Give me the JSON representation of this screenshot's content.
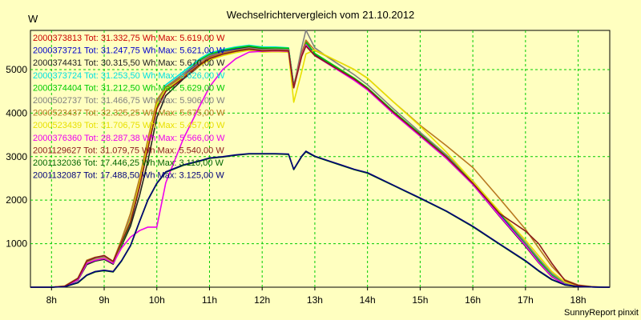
{
  "chart_data": {
    "type": "line",
    "title": "Wechselrichtervergleich vom 21.10.2012",
    "ylabel": "W",
    "xlabel": "",
    "credit": "SunnyReport pinxit",
    "x_unit": "hour",
    "xlim": [
      7.6,
      18.6
    ],
    "ylim": [
      0,
      5900
    ],
    "yticks": [
      1000,
      2000,
      3000,
      4000,
      5000
    ],
    "xticks": [
      {
        "value": 8,
        "label": "8h"
      },
      {
        "value": 9,
        "label": "9h"
      },
      {
        "value": 10,
        "label": "10h"
      },
      {
        "value": 11,
        "label": "11h"
      },
      {
        "value": 12,
        "label": "12h"
      },
      {
        "value": 13,
        "label": "13h"
      },
      {
        "value": 14,
        "label": "14h"
      },
      {
        "value": 15,
        "label": "15h"
      },
      {
        "value": 16,
        "label": "16h"
      },
      {
        "value": 17,
        "label": "17h"
      },
      {
        "value": 18,
        "label": "18h"
      }
    ],
    "grid": true,
    "legend_position": "top-left",
    "x": [
      7.6,
      8.0,
      8.25,
      8.5,
      8.67,
      8.83,
      9.0,
      9.17,
      9.33,
      9.5,
      9.67,
      9.83,
      10.0,
      10.17,
      10.5,
      10.83,
      11.0,
      11.25,
      11.5,
      11.75,
      12.0,
      12.25,
      12.5,
      12.6,
      12.75,
      12.83,
      13.0,
      13.25,
      13.5,
      13.75,
      14.0,
      14.5,
      15.0,
      15.5,
      16.0,
      16.5,
      17.0,
      17.25,
      17.5,
      17.75,
      18.0,
      18.25,
      18.5,
      18.6
    ],
    "series": [
      {
        "name": "2000373813",
        "label": "2000373813 Tot: 31.332,75 Wh Max: 5.619,00 W",
        "color": "#cc0000",
        "values": [
          0,
          0,
          20,
          180,
          560,
          630,
          680,
          560,
          1000,
          1500,
          2300,
          3200,
          4100,
          4500,
          4800,
          5150,
          5290,
          5390,
          5460,
          5520,
          5480,
          5490,
          5480,
          4600,
          5350,
          5619,
          5350,
          5160,
          4970,
          4780,
          4560,
          4010,
          3500,
          3000,
          2400,
          1700,
          1000,
          620,
          280,
          70,
          20,
          5,
          0,
          0
        ]
      },
      {
        "name": "2000373721",
        "label": "2000373721 Tot: 31.247,75 Wh Max: 5.621,00 W",
        "color": "#0000cc",
        "values": [
          0,
          0,
          20,
          170,
          540,
          620,
          660,
          540,
          980,
          1480,
          2300,
          3200,
          4150,
          4550,
          4850,
          5200,
          5320,
          5420,
          5480,
          5540,
          5500,
          5500,
          5490,
          4620,
          5360,
          5621,
          5360,
          5170,
          4980,
          4790,
          4570,
          4020,
          3510,
          3010,
          2410,
          1700,
          990,
          600,
          270,
          60,
          15,
          5,
          0,
          0
        ]
      },
      {
        "name": "2000374431",
        "label": "2000374431 Tot: 30.315,50 Wh Max: 5.670,00 W",
        "color": "#202020",
        "values": [
          0,
          0,
          20,
          160,
          520,
          600,
          640,
          530,
          950,
          1400,
          2100,
          2900,
          3900,
          4400,
          4780,
          5100,
          5260,
          5380,
          5450,
          5520,
          5470,
          5480,
          5470,
          4590,
          5340,
          5670,
          5330,
          5140,
          4950,
          4760,
          4540,
          3990,
          3470,
          2960,
          2360,
          1640,
          940,
          560,
          240,
          60,
          15,
          5,
          0,
          0
        ]
      },
      {
        "name": "2000373724",
        "label": "2000373724 Tot: 31.253,50 Wh Max: 5.626,00 W",
        "color": "#00e0e0",
        "values": [
          0,
          0,
          20,
          170,
          550,
          620,
          670,
          550,
          1000,
          1500,
          2350,
          3250,
          4200,
          4650,
          4950,
          5260,
          5380,
          5460,
          5520,
          5560,
          5520,
          5520,
          5500,
          4640,
          5370,
          5626,
          5370,
          5180,
          4990,
          4800,
          4580,
          4030,
          3520,
          3020,
          2420,
          1720,
          1010,
          630,
          290,
          75,
          20,
          5,
          0,
          0
        ]
      },
      {
        "name": "2000374404",
        "label": "2000374404 Tot: 31.212,50 Wh Max: 5.629,00 W",
        "color": "#00cc00",
        "values": [
          0,
          0,
          20,
          170,
          550,
          620,
          660,
          550,
          990,
          1490,
          2320,
          3220,
          4150,
          4600,
          4900,
          5230,
          5350,
          5440,
          5500,
          5540,
          5500,
          5500,
          5490,
          4630,
          5370,
          5629,
          5370,
          5180,
          4990,
          4800,
          4580,
          4030,
          3520,
          3020,
          2420,
          1720,
          1000,
          620,
          280,
          70,
          20,
          5,
          0,
          0
        ]
      },
      {
        "name": "2000502737",
        "label": "2000502737 Tot: 31.466,75 Wh Max: 5.906,00 W",
        "color": "#808080",
        "values": [
          0,
          0,
          20,
          190,
          580,
          650,
          700,
          580,
          1050,
          1600,
          2400,
          3300,
          4250,
          4600,
          4900,
          5200,
          5320,
          5400,
          5450,
          5500,
          5460,
          5470,
          5460,
          4600,
          5500,
          5906,
          5500,
          5280,
          5080,
          4880,
          4650,
          4090,
          3560,
          3040,
          2440,
          1740,
          1030,
          660,
          320,
          100,
          30,
          10,
          0,
          0
        ]
      },
      {
        "name": "2000523437",
        "label": "2000523437 Tot: 32.325,25 Wh Max: 5.675,00 W",
        "color": "#b87820",
        "values": [
          0,
          0,
          30,
          210,
          620,
          690,
          720,
          600,
          1100,
          1700,
          2500,
          3400,
          4300,
          4600,
          4850,
          5150,
          5280,
          5380,
          5440,
          5480,
          5440,
          5450,
          5440,
          4600,
          5380,
          5675,
          5440,
          5290,
          5150,
          5000,
          4800,
          4250,
          3720,
          3250,
          2750,
          2050,
          1330,
          900,
          480,
          170,
          50,
          15,
          0,
          0
        ]
      },
      {
        "name": "2000523439",
        "label": "2000523439 Tot: 31.706,75 Wh Max: 5.457,00 W",
        "color": "#e8e000",
        "values": [
          0,
          0,
          20,
          180,
          560,
          630,
          670,
          560,
          1020,
          1550,
          2380,
          3280,
          4200,
          4550,
          4820,
          5100,
          5220,
          5320,
          5390,
          5440,
          5400,
          5410,
          5400,
          4250,
          4950,
          5360,
          5450,
          5300,
          5150,
          5000,
          4800,
          4250,
          3700,
          3100,
          2430,
          1750,
          1080,
          720,
          360,
          120,
          30,
          10,
          0,
          0
        ]
      },
      {
        "name": "2000376360",
        "label": "2000376360 Tot: 28.287,38 Wh Max: 5.566,00 W",
        "color": "#ee00ee",
        "values": [
          0,
          0,
          20,
          170,
          550,
          620,
          660,
          550,
          900,
          1150,
          1300,
          1380,
          1380,
          2400,
          3400,
          4200,
          4600,
          5000,
          5250,
          5400,
          5420,
          5430,
          5420,
          4580,
          5320,
          5566,
          5320,
          5130,
          4940,
          4750,
          4530,
          3980,
          3470,
          2960,
          2360,
          1650,
          960,
          570,
          250,
          60,
          15,
          5,
          0,
          0
        ]
      },
      {
        "name": "2001129627",
        "label": "2001129627 Tot: 31.079,75 Wh Max: 5.540,00 W",
        "color": "#8b1a1a",
        "values": [
          0,
          0,
          20,
          200,
          600,
          680,
          730,
          590,
          1030,
          1500,
          2300,
          3180,
          4100,
          4500,
          4800,
          5120,
          5250,
          5350,
          5420,
          5470,
          5430,
          5440,
          5430,
          4580,
          5300,
          5540,
          5320,
          5140,
          4960,
          4780,
          4560,
          4010,
          3500,
          2990,
          2390,
          1700,
          1290,
          1000,
          550,
          150,
          40,
          10,
          0,
          0
        ]
      },
      {
        "name": "2001132036",
        "label": "2001132036 Tot: 17.446,25 Wh Max: 3.110,00 W",
        "color": "#006400",
        "values": [
          0,
          0,
          10,
          100,
          270,
          350,
          380,
          350,
          600,
          950,
          1500,
          2000,
          2380,
          2640,
          2800,
          2900,
          2960,
          2990,
          3030,
          3060,
          3060,
          3060,
          3050,
          2700,
          3000,
          3110,
          3000,
          2900,
          2800,
          2700,
          2620,
          2330,
          2040,
          1740,
          1390,
          990,
          600,
          370,
          170,
          50,
          15,
          5,
          0,
          0
        ]
      },
      {
        "name": "2001132087",
        "label": "2001132087 Tot: 17.488,50 Wh Max: 3.125,00 W",
        "color": "#00007a",
        "values": [
          0,
          0,
          10,
          110,
          280,
          360,
          390,
          360,
          610,
          960,
          1510,
          2010,
          2390,
          2650,
          2810,
          2910,
          2970,
          3000,
          3040,
          3070,
          3070,
          3070,
          3060,
          2710,
          3010,
          3125,
          3010,
          2910,
          2810,
          2710,
          2630,
          2340,
          2050,
          1750,
          1400,
          1000,
          610,
          380,
          180,
          55,
          15,
          5,
          0,
          0
        ]
      }
    ]
  }
}
